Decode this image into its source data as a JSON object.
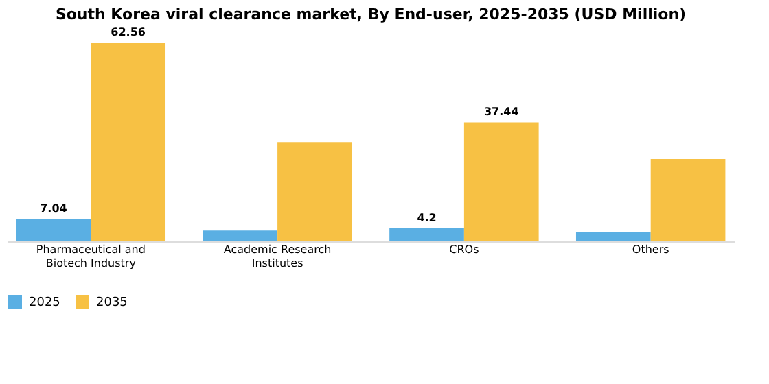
{
  "chart_data": {
    "type": "bar",
    "title": "South Korea viral clearance market, By End-user, 2025-2035 (USD Million)",
    "categories": [
      "Pharmaceutical and\nBiotech Industry",
      "Academic Research\nInstitutes",
      "CROs",
      "Others"
    ],
    "series": [
      {
        "name": "2025",
        "color": "#5aafe3",
        "values": [
          7.04,
          3.4,
          4.2,
          2.8
        ],
        "value_labels": [
          "7.04",
          null,
          "4.2",
          null
        ]
      },
      {
        "name": "2035",
        "color": "#f7c144",
        "values": [
          62.56,
          31.2,
          37.44,
          25.9
        ],
        "value_labels": [
          "62.56",
          null,
          "37.44",
          null
        ]
      }
    ],
    "legend": "bottom",
    "grid": false
  }
}
